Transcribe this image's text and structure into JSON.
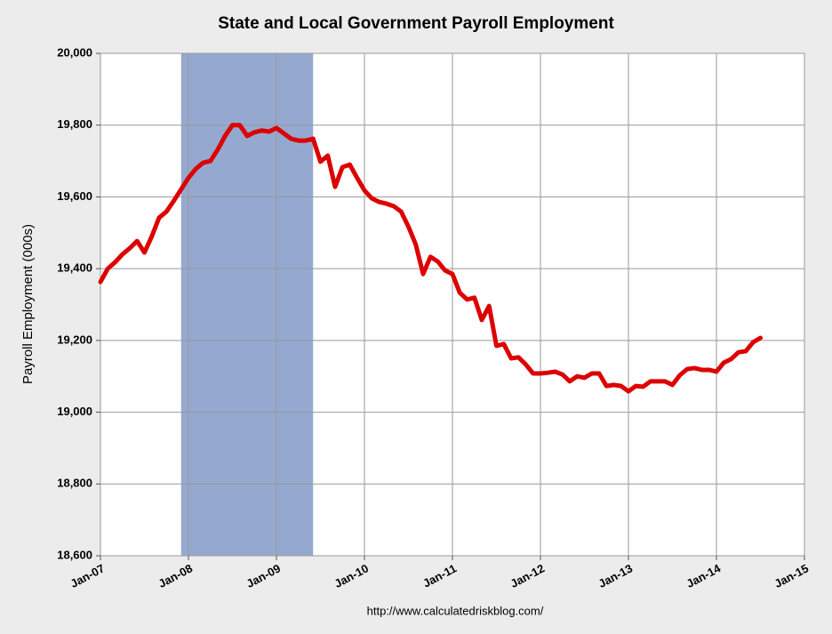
{
  "chart_data": {
    "type": "line",
    "title": "State and Local Government Payroll Employment",
    "y_label": "Payroll Employment (000s)",
    "source": "http://www.calculatedriskblog.com/",
    "x": [
      "2007-01",
      "2007-02",
      "2007-03",
      "2007-04",
      "2007-05",
      "2007-06",
      "2007-07",
      "2007-08",
      "2007-09",
      "2007-10",
      "2007-11",
      "2007-12",
      "2008-01",
      "2008-02",
      "2008-03",
      "2008-04",
      "2008-05",
      "2008-06",
      "2008-07",
      "2008-08",
      "2008-09",
      "2008-10",
      "2008-11",
      "2008-12",
      "2009-01",
      "2009-02",
      "2009-03",
      "2009-04",
      "2009-05",
      "2009-06",
      "2009-07",
      "2009-08",
      "2009-09",
      "2009-10",
      "2009-11",
      "2009-12",
      "2010-01",
      "2010-02",
      "2010-03",
      "2010-04",
      "2010-05",
      "2010-06",
      "2010-07",
      "2010-08",
      "2010-09",
      "2010-10",
      "2010-11",
      "2010-12",
      "2011-01",
      "2011-02",
      "2011-03",
      "2011-04",
      "2011-05",
      "2011-06",
      "2011-07",
      "2011-08",
      "2011-09",
      "2011-10",
      "2011-11",
      "2011-12",
      "2012-01",
      "2012-02",
      "2012-03",
      "2012-04",
      "2012-05",
      "2012-06",
      "2012-07",
      "2012-08",
      "2012-09",
      "2012-10",
      "2012-11",
      "2012-12",
      "2013-01",
      "2013-02",
      "2013-03",
      "2013-04",
      "2013-05",
      "2013-06",
      "2013-07",
      "2013-08",
      "2013-09",
      "2013-10",
      "2013-11",
      "2013-12",
      "2014-01",
      "2014-02",
      "2014-03",
      "2014-04",
      "2014-05",
      "2014-06",
      "2014-07"
    ],
    "series": [
      {
        "name": "State and Local Government",
        "color": "#dd0000",
        "values": [
          19363,
          19400,
          19418,
          19440,
          19457,
          19477,
          19445,
          19490,
          19542,
          19559,
          19589,
          19621,
          19653,
          19678,
          19695,
          19700,
          19732,
          19770,
          19800,
          19800,
          19770,
          19780,
          19785,
          19782,
          19792,
          19777,
          19762,
          19757,
          19757,
          19762,
          19698,
          19715,
          19628,
          19683,
          19690,
          19653,
          19618,
          19596,
          19586,
          19581,
          19574,
          19559,
          19517,
          19467,
          19385,
          19433,
          19420,
          19395,
          19385,
          19333,
          19314,
          19319,
          19257,
          19296,
          19185,
          19190,
          19150,
          19153,
          19133,
          19108,
          19108,
          19110,
          19113,
          19105,
          19086,
          19100,
          19096,
          19108,
          19108,
          19073,
          19076,
          19073,
          19058,
          19073,
          19071,
          19086,
          19086,
          19086,
          19076,
          19103,
          19120,
          19123,
          19118,
          19118,
          19113,
          19138,
          19148,
          19167,
          19170,
          19195,
          19207
        ]
      }
    ],
    "shaded_regions": [
      {
        "start": "2007-12",
        "end": "2009-06",
        "color": "#95a9d0"
      }
    ],
    "xlim": [
      "2007-01",
      "2015-01"
    ],
    "xticks": [
      {
        "value": "2007-01",
        "label": "Jan-07"
      },
      {
        "value": "2008-01",
        "label": "Jan-08"
      },
      {
        "value": "2009-01",
        "label": "Jan-09"
      },
      {
        "value": "2010-01",
        "label": "Jan-10"
      },
      {
        "value": "2011-01",
        "label": "Jan-11"
      },
      {
        "value": "2012-01",
        "label": "Jan-12"
      },
      {
        "value": "2013-01",
        "label": "Jan-13"
      },
      {
        "value": "2014-01",
        "label": "Jan-14"
      },
      {
        "value": "2015-01",
        "label": "Jan-15"
      }
    ],
    "ylim": [
      18600,
      20000
    ],
    "yticks": [
      {
        "value": 18600,
        "label": "18,600"
      },
      {
        "value": 18800,
        "label": "18,800"
      },
      {
        "value": 19000,
        "label": "19,000"
      },
      {
        "value": 19200,
        "label": "19,200"
      },
      {
        "value": 19400,
        "label": "19,400"
      },
      {
        "value": 19600,
        "label": "19,600"
      },
      {
        "value": 19800,
        "label": "19,800"
      },
      {
        "value": 20000,
        "label": "20,000"
      }
    ],
    "grid": true
  }
}
